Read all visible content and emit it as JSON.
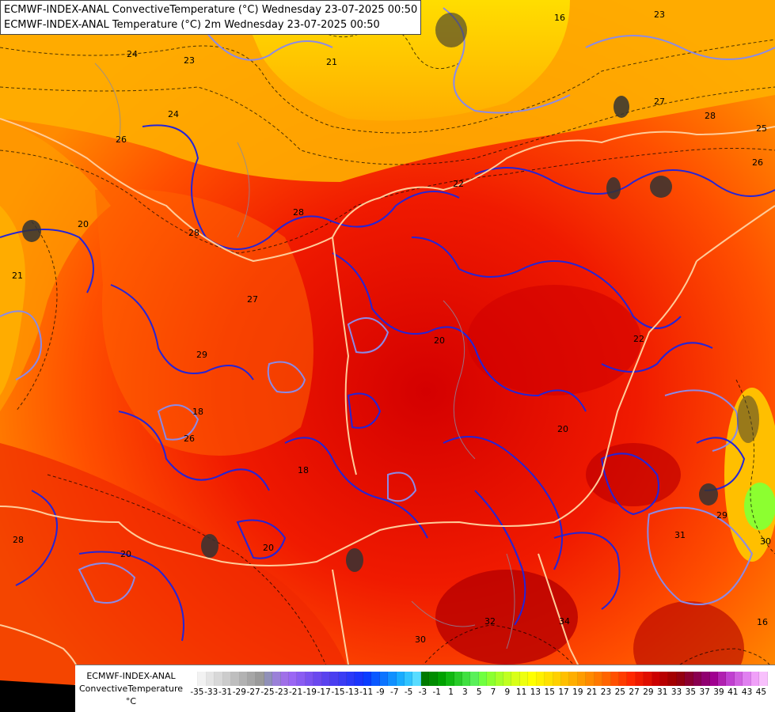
{
  "titles": {
    "line1": "ECMWF-INDEX-ANAL ConvectiveTemperature (°C) Wednesday 23-07-2025 00:50",
    "line2": "ECMWF-INDEX-ANAL Temperature (°C) 2m Wednesday 23-07-2025 00:50"
  },
  "legend": {
    "line1": "ECMWF-INDEX-ANAL",
    "line2": "ConvectiveTemperature",
    "line3": "°C",
    "ticks": [
      "-35",
      "-33",
      "-31",
      "-29",
      "-27",
      "-25",
      "-23",
      "-21",
      "-19",
      "-17",
      "-15",
      "-13",
      "-11",
      "-9",
      "-7",
      "-5",
      "-3",
      "-1",
      "1",
      "3",
      "5",
      "7",
      "9",
      "11",
      "13",
      "15",
      "17",
      "19",
      "21",
      "23",
      "25",
      "27",
      "29",
      "31",
      "33",
      "35",
      "37",
      "39",
      "41",
      "43",
      "45"
    ],
    "colors": [
      "#ffffff",
      "#f2f2f2",
      "#e4e4e4",
      "#d8d8d8",
      "#cccccc",
      "#bebebe",
      "#b2b2b2",
      "#a6a6a6",
      "#9a9a9a",
      "#9090b8",
      "#9a80d8",
      "#a070e8",
      "#9a66f4",
      "#8a5cf2",
      "#7a52f0",
      "#6a48ee",
      "#5a42ee",
      "#4a3ef0",
      "#3a3cf4",
      "#2a38f8",
      "#1a34fc",
      "#0a3cff",
      "#0a58ff",
      "#0c74ff",
      "#1090ff",
      "#18acff",
      "#30c4ff",
      "#58dcff",
      "#007a00",
      "#008c00",
      "#00a200",
      "#10b810",
      "#28cc28",
      "#40e040",
      "#5af05a",
      "#70ff40",
      "#8cff30",
      "#a8ff28",
      "#c0ff20",
      "#d8ff18",
      "#eeff10",
      "#ffff00",
      "#fff000",
      "#ffe000",
      "#ffd000",
      "#ffbf00",
      "#ffae00",
      "#ff9c00",
      "#ff8a00",
      "#ff7800",
      "#ff6400",
      "#ff5000",
      "#ff3c00",
      "#ff2800",
      "#f01a00",
      "#e00e00",
      "#cc0000",
      "#b80000",
      "#a40000",
      "#940010",
      "#8c0030",
      "#8a0050",
      "#900070",
      "#a00090",
      "#b020b0",
      "#c040d0",
      "#d060e0",
      "#e080f0",
      "#f0a0f8",
      "#f8c0fc"
    ]
  },
  "map_labels": [
    "24",
    "23",
    "21",
    "16",
    "23",
    "28",
    "27",
    "26",
    "25",
    "28",
    "26",
    "28",
    "24",
    "27",
    "20",
    "20",
    "18",
    "22",
    "18",
    "20",
    "20",
    "29",
    "31",
    "30",
    "32",
    "34",
    "16",
    "30",
    "28",
    "22",
    "29",
    "21",
    "20",
    "26"
  ],
  "colors": {
    "hot_red": "#e81000",
    "orange": "#ff7800",
    "yellow": "#ffe000",
    "dark_red": "#c00000",
    "contour_blue": "#2020e0",
    "contour_lavender": "#8080e0",
    "border": "#ffcc99"
  }
}
